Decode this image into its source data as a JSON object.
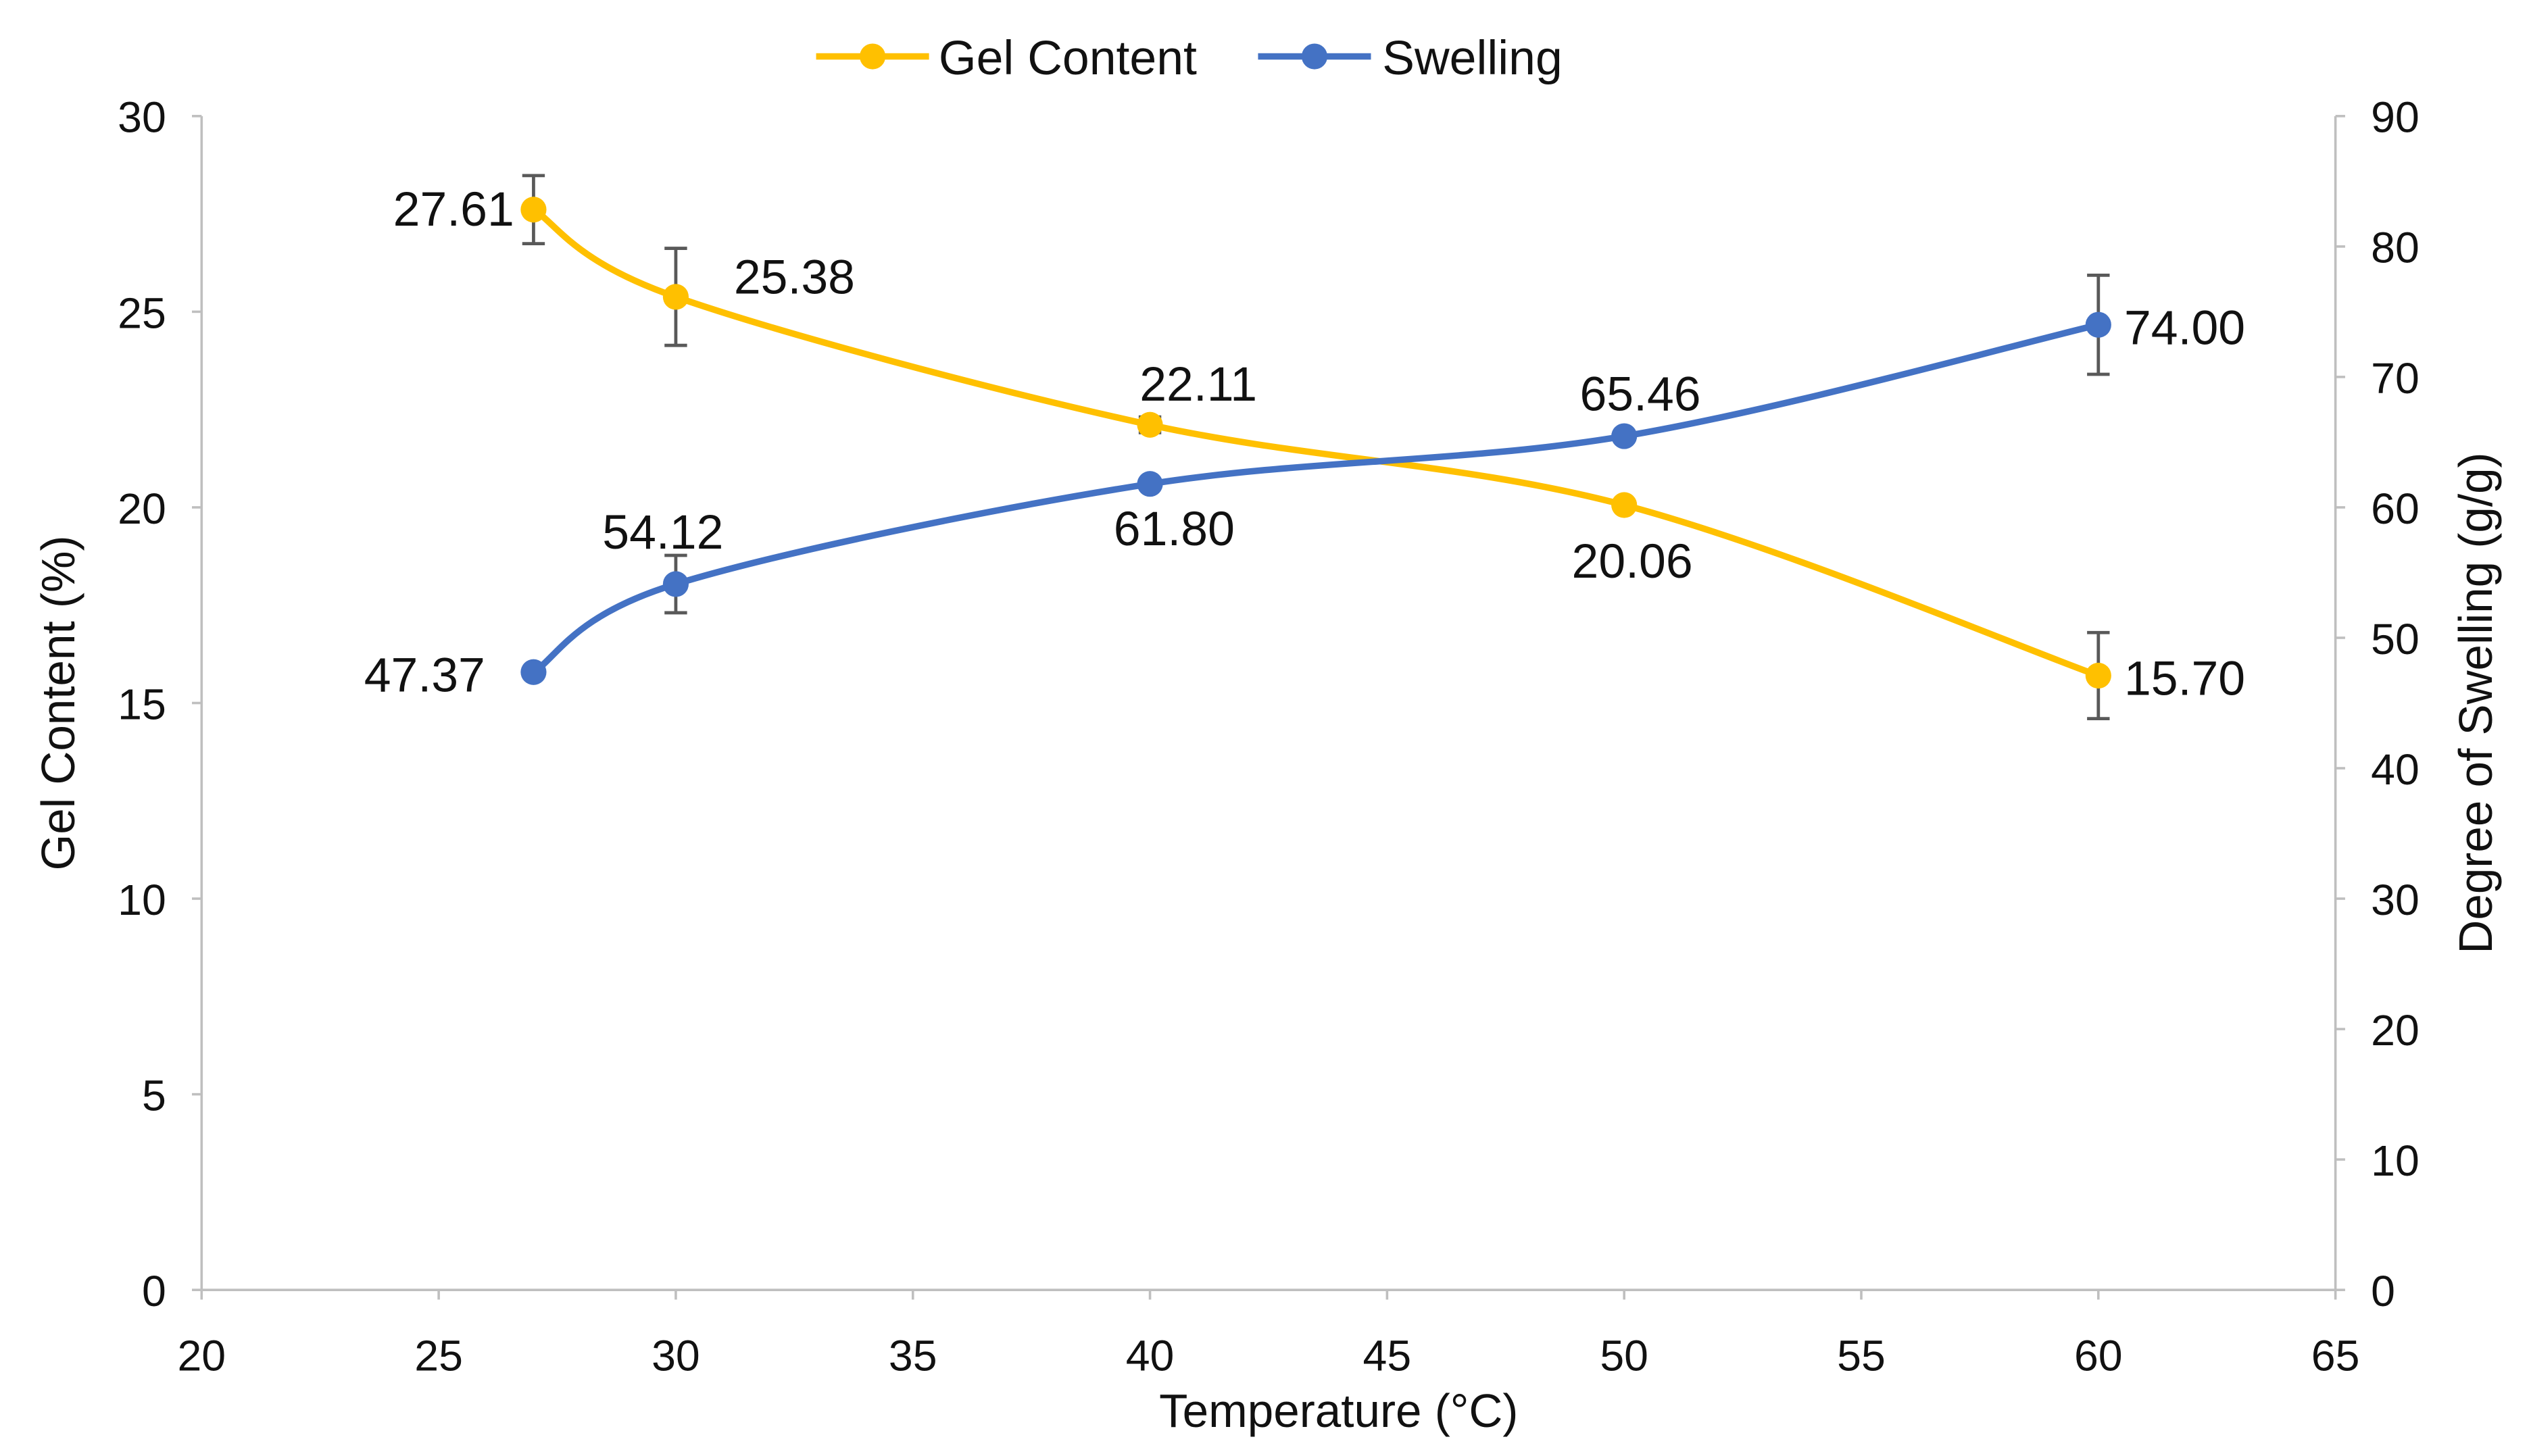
{
  "chart_data": {
    "type": "line",
    "title": "",
    "xlabel": "Temperature (°C)",
    "ylabel": "Gel Content (%)",
    "y2label": "Degree of Swelling (g/g)",
    "xlim": [
      20,
      65
    ],
    "ylim": [
      0,
      30
    ],
    "y2lim": [
      0,
      90
    ],
    "xticks": [
      "20",
      "25",
      "30",
      "35",
      "40",
      "45",
      "50",
      "55",
      "60",
      "65"
    ],
    "yticks": [
      "0",
      "5",
      "10",
      "15",
      "20",
      "25",
      "30"
    ],
    "y2ticks": [
      "0",
      "10",
      "20",
      "30",
      "40",
      "50",
      "60",
      "70",
      "80",
      "90"
    ],
    "legend_position": "top-center",
    "grid": false,
    "series": [
      {
        "name": "Gel Content",
        "axis": "left",
        "color": "#FFC000",
        "x": [
          27,
          30,
          40,
          50,
          60
        ],
        "y": [
          27.61,
          25.38,
          22.11,
          20.06,
          15.7
        ],
        "error": [
          0.87,
          1.24,
          0.2,
          0.1,
          1.1
        ],
        "labels": [
          "27.61",
          "25.38",
          "22.11",
          "20.06",
          "15.70"
        ]
      },
      {
        "name": "Swelling",
        "axis": "right",
        "color": "#4472C4",
        "x": [
          27,
          30,
          40,
          50,
          60
        ],
        "y": [
          47.37,
          54.12,
          61.8,
          65.46,
          74.0
        ],
        "error": [
          0,
          2.2,
          0,
          0,
          3.8
        ],
        "labels": [
          "47.37",
          "54.12",
          "61.80",
          "65.46",
          "74.00"
        ]
      }
    ]
  }
}
